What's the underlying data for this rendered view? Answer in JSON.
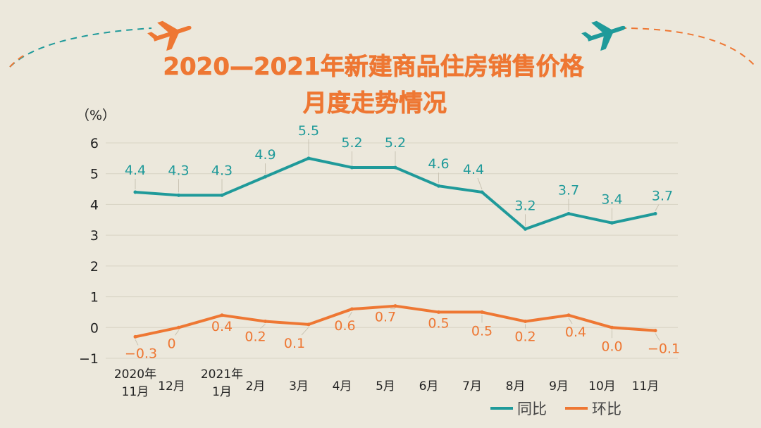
{
  "title_line1": "2020—2021年新建商品住房销售价格",
  "title_line2": "月度走势情况",
  "colors": {
    "teal": "#1f9a9a",
    "orange": "#ee7733",
    "grid": "#d8d3c4",
    "background": "#ece8dc"
  },
  "chart_data": {
    "type": "line",
    "unit": "（%）",
    "ylim": [
      -1,
      6
    ],
    "yticks": [
      "6",
      "5",
      "4",
      "3",
      "2",
      "1",
      "0",
      "−1"
    ],
    "grid": true,
    "legend_placement": "bottom-right",
    "categories": [
      [
        "2020年",
        "11月"
      ],
      [
        "12月"
      ],
      [
        "2021年",
        "1月"
      ],
      [
        "2月"
      ],
      [
        "3月"
      ],
      [
        "4月"
      ],
      [
        "5月"
      ],
      [
        "6月"
      ],
      [
        "7月"
      ],
      [
        "8月"
      ],
      [
        "9月"
      ],
      [
        "10月"
      ],
      [
        "11月"
      ]
    ],
    "series": [
      {
        "name": "同比",
        "color": "#1f9a9a",
        "values": [
          4.4,
          4.3,
          4.3,
          4.9,
          5.5,
          5.2,
          5.2,
          4.6,
          4.4,
          3.2,
          3.7,
          3.4,
          3.7
        ],
        "labels": [
          "4.4",
          "4.3",
          "4.3",
          "4.9",
          "5.5",
          "5.2",
          "5.2",
          "4.6",
          "4.4",
          "3.2",
          "3.7",
          "3.4",
          "3.7"
        ]
      },
      {
        "name": "环比",
        "color": "#ee7733",
        "values": [
          -0.3,
          0,
          0.4,
          0.2,
          0.1,
          0.6,
          0.7,
          0.5,
          0.5,
          0.2,
          0.4,
          0.0,
          -0.1
        ],
        "labels": [
          "−0.3",
          "0",
          "0.4",
          "0.2",
          "0.1",
          "0.6",
          "0.7",
          "0.5",
          "0.5",
          "0.2",
          "0.4",
          "0.0",
          "−0.1"
        ]
      }
    ]
  }
}
